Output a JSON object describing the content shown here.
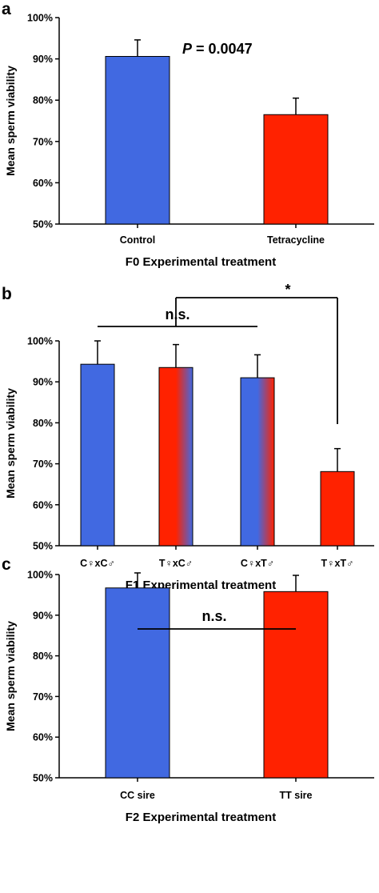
{
  "chart_data": [
    {
      "panel": "a",
      "type": "bar",
      "categories": [
        "Control",
        "Tetracycline"
      ],
      "values": [
        0.906,
        0.765
      ],
      "errors": [
        0.04,
        0.04
      ],
      "fills": [
        "blue",
        "red"
      ],
      "ylim": [
        0.5,
        1.0
      ],
      "yticks": [
        "50%",
        "60%",
        "70%",
        "80%",
        "90%",
        "100%"
      ],
      "ylabel": "Mean sperm viability",
      "xlabel": "F0 Experimental treatment",
      "annotations": [
        {
          "p_label": "P",
          "p_value": " = 0.0047"
        }
      ],
      "brackets": []
    },
    {
      "panel": "b",
      "type": "bar",
      "categories": [
        "C♀xC♂",
        "T♀xC♂",
        "C♀xT♂",
        "T♀xT♂"
      ],
      "values": [
        0.943,
        0.935,
        0.91,
        0.681
      ],
      "errors": [
        0.057,
        0.056,
        0.056,
        0.056
      ],
      "fills": [
        "blue",
        "red-blue",
        "blue-red",
        "red"
      ],
      "ylim": [
        0.5,
        1.0
      ],
      "yticks": [
        "50%",
        "60%",
        "70%",
        "80%",
        "90%",
        "100%"
      ],
      "ylabel": "Mean sperm viability",
      "xlabel": "F1 Experimental treatment",
      "annotations": [],
      "brackets": [
        {
          "label": "n.s.",
          "from": 0,
          "to": 2
        },
        {
          "label": "*",
          "from": 1,
          "to": 3
        }
      ]
    },
    {
      "panel": "c",
      "type": "bar",
      "categories": [
        "CC sire",
        "TT sire"
      ],
      "values": [
        0.967,
        0.958
      ],
      "errors": [
        0.037,
        0.04
      ],
      "fills": [
        "blue",
        "red"
      ],
      "ylim": [
        0.5,
        1.0
      ],
      "yticks": [
        "50%",
        "60%",
        "70%",
        "80%",
        "90%",
        "100%"
      ],
      "ylabel": "Mean sperm viability",
      "xlabel": "F2 Experimental treatment",
      "annotations": [],
      "brackets": [
        {
          "label": "n.s.",
          "from": 0,
          "to": 1
        }
      ]
    }
  ],
  "colors": {
    "blue": "#4169e1",
    "red": "#ff2200",
    "axis": "#000000"
  }
}
